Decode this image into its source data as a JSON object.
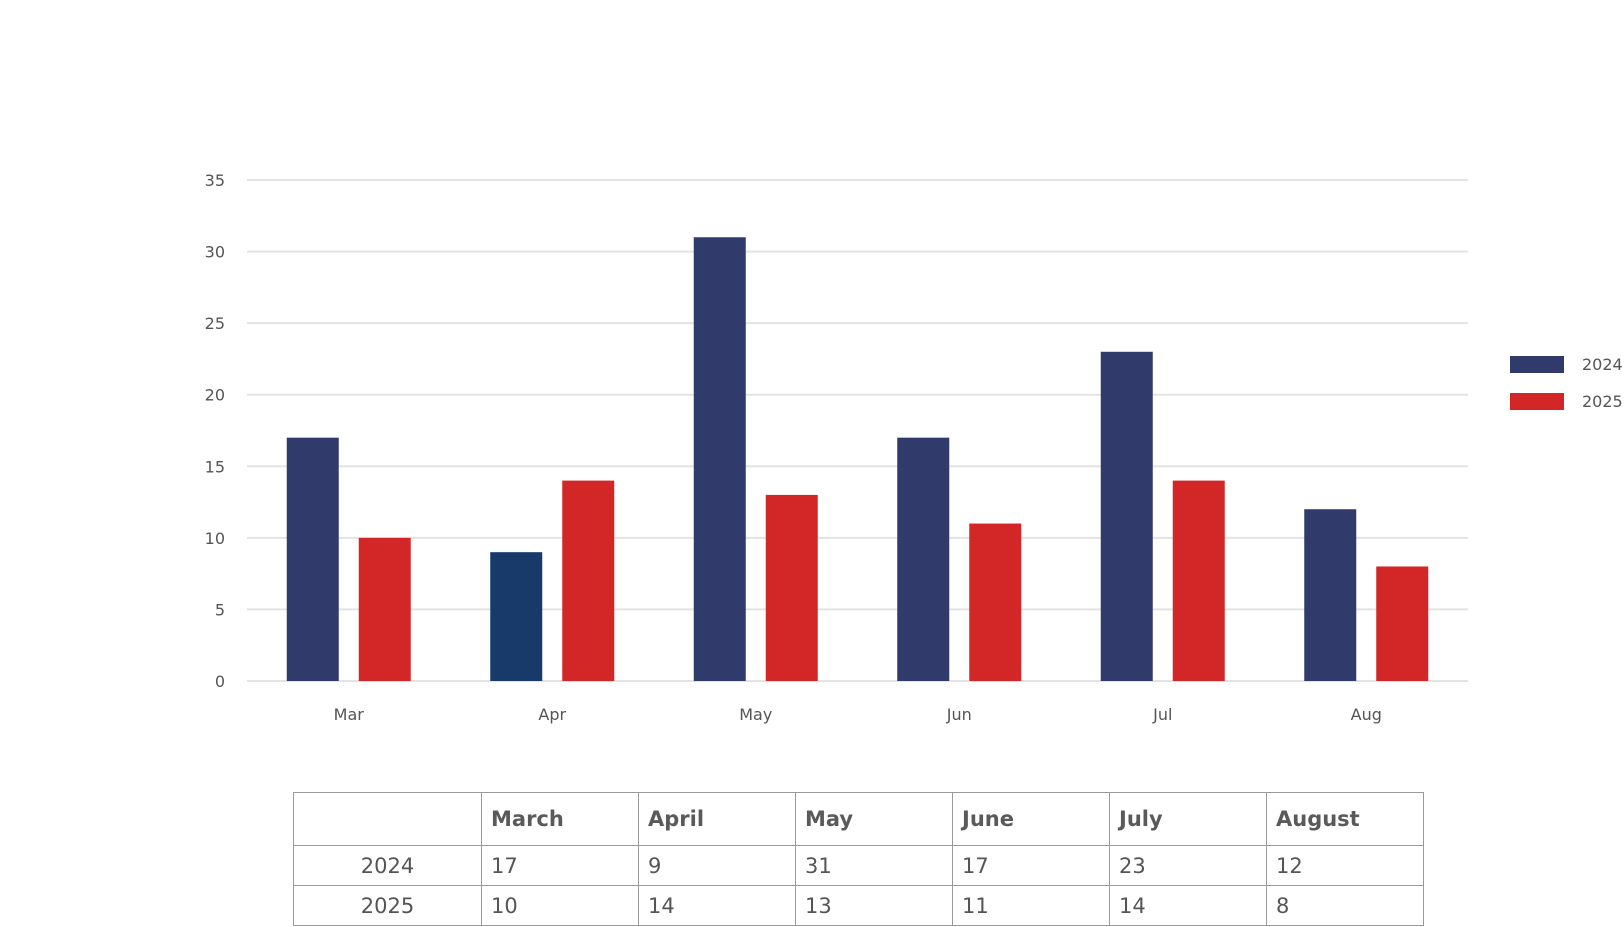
{
  "chart_data": {
    "type": "bar",
    "categories": [
      "Mar",
      "Apr",
      "May",
      "Jun",
      "Jul",
      "Aug"
    ],
    "series": [
      {
        "name": "2024",
        "values": [
          17,
          9,
          31,
          17,
          23,
          12
        ],
        "color": "#303a6b"
      },
      {
        "name": "2025",
        "values": [
          10,
          14,
          13,
          11,
          14,
          8
        ],
        "color": "#d22627"
      }
    ],
    "highlight": {
      "series": 0,
      "index": 1,
      "color": "#183a6b"
    },
    "yticks": [
      0,
      5,
      10,
      15,
      20,
      25,
      30,
      35
    ],
    "ylim": [
      0,
      35
    ],
    "grid": true,
    "legend_position": "right",
    "title": "",
    "xlabel": "",
    "ylabel": ""
  },
  "table": {
    "headers": [
      "",
      "March",
      "April",
      "May",
      "June",
      "July",
      "August"
    ],
    "rows": [
      {
        "label": "2024",
        "cells": [
          "17",
          "9",
          "31",
          "17",
          "23",
          "12"
        ]
      },
      {
        "label": "2025",
        "cells": [
          "10",
          "14",
          "13",
          "11",
          "14",
          "8"
        ]
      }
    ]
  }
}
